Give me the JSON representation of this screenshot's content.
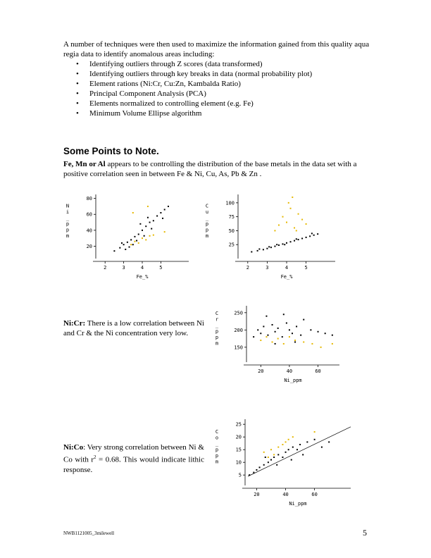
{
  "intro": {
    "lead": "A number of techniques were then used to maximize the information gained from this quality aqua regia data to identify anomalous areas including:",
    "bullets": [
      "Identifying outliers through Z scores (data transformed)",
      "Identifying outliers through key breaks in data (normal probability plot)",
      "Element rations (Ni:Cr, Cu:Zn, Kambalda Ratio)",
      "Principal Component Analysis (PCA)",
      "Elements normalized to controlling element (e.g. Fe)",
      "Minimum Volume Ellipse algorithm"
    ]
  },
  "section_heading": "Some Points to Note.",
  "para1": {
    "bold": "Fe, Mn or Al",
    "rest": " appears to be controlling the distribution of the base metals in the data set with a positive correlation seen in between Fe & Ni, Cu, As, Pb & Zn ."
  },
  "nicr_note": {
    "bold": "Ni:Cr:",
    "rest": " There is a low correlation between Ni and Cr & the Ni concentration very low."
  },
  "nico_note": {
    "bold": "Ni:Co",
    "rest_a": ": Very strong correlation between Ni & Co with r",
    "sup": "2",
    "rest_b": " = 0.68. This would indicate lithic response."
  },
  "footer": "NWB1121005_3milewell",
  "page_number": "5",
  "colors": {
    "black_points": "#000000",
    "yellow_points": "#e6b800"
  },
  "chart_data": [
    {
      "type": "scatter",
      "xlabel": "Fe_%",
      "ylabel": "Ni_ppm",
      "xlim": [
        1.5,
        6.5
      ],
      "ylim": [
        8,
        85
      ],
      "xticks": [
        "2",
        "3",
        "4",
        "5"
      ],
      "yticks": [
        "20",
        "40",
        "60",
        "80"
      ],
      "series": [
        {
          "color": "#000000",
          "points": [
            [
              2.5,
              14
            ],
            [
              2.8,
              18
            ],
            [
              3.0,
              22
            ],
            [
              3.1,
              16
            ],
            [
              3.2,
              25
            ],
            [
              3.4,
              28
            ],
            [
              3.5,
              22
            ],
            [
              3.6,
              32
            ],
            [
              3.8,
              35
            ],
            [
              4.0,
              40
            ],
            [
              4.2,
              45
            ],
            [
              4.4,
              50
            ],
            [
              4.6,
              52
            ],
            [
              4.8,
              58
            ],
            [
              5.0,
              62
            ],
            [
              5.2,
              66
            ],
            [
              5.4,
              70
            ],
            [
              3.3,
              19
            ],
            [
              3.7,
              27
            ],
            [
              4.1,
              33
            ],
            [
              4.5,
              42
            ],
            [
              2.9,
              24
            ],
            [
              3.9,
              48
            ],
            [
              4.3,
              56
            ],
            [
              5.1,
              55
            ]
          ]
        },
        {
          "color": "#e6b800",
          "points": [
            [
              3.4,
              22
            ],
            [
              3.6,
              26
            ],
            [
              3.8,
              24
            ],
            [
              4.0,
              30
            ],
            [
              4.2,
              28
            ],
            [
              4.4,
              33
            ],
            [
              4.6,
              34
            ],
            [
              5.2,
              38
            ],
            [
              3.5,
              62
            ],
            [
              4.3,
              70
            ]
          ]
        }
      ]
    },
    {
      "type": "scatter",
      "xlabel": "Fe_%",
      "ylabel": "Cu_ppm",
      "xlim": [
        1.5,
        6.5
      ],
      "ylim": [
        5,
        115
      ],
      "xticks": [
        "2",
        "3",
        "4",
        "5"
      ],
      "yticks": [
        "25",
        "50",
        "75",
        "100"
      ],
      "series": [
        {
          "color": "#000000",
          "points": [
            [
              2.2,
              12
            ],
            [
              2.5,
              14
            ],
            [
              2.8,
              16
            ],
            [
              3.0,
              18
            ],
            [
              3.2,
              20
            ],
            [
              3.4,
              22
            ],
            [
              3.6,
              24
            ],
            [
              3.8,
              26
            ],
            [
              4.0,
              28
            ],
            [
              4.2,
              30
            ],
            [
              4.4,
              32
            ],
            [
              4.6,
              34
            ],
            [
              4.8,
              36
            ],
            [
              5.0,
              38
            ],
            [
              5.2,
              40
            ],
            [
              5.4,
              42
            ],
            [
              5.6,
              44
            ],
            [
              3.1,
              21
            ],
            [
              3.9,
              25
            ],
            [
              4.5,
              35
            ],
            [
              5.3,
              45
            ],
            [
              2.6,
              17
            ],
            [
              3.5,
              25
            ]
          ]
        },
        {
          "color": "#e6b800",
          "points": [
            [
              3.6,
              60
            ],
            [
              3.8,
              75
            ],
            [
              4.0,
              65
            ],
            [
              4.2,
              90
            ],
            [
              4.4,
              55
            ],
            [
              4.6,
              80
            ],
            [
              4.8,
              70
            ],
            [
              3.4,
              50
            ],
            [
              4.1,
              100
            ],
            [
              4.5,
              50
            ],
            [
              5.0,
              62
            ],
            [
              4.3,
              110
            ]
          ]
        }
      ]
    },
    {
      "type": "scatter",
      "xlabel": "Ni_ppm",
      "ylabel": "Cr_ppm",
      "xlim": [
        10,
        75
      ],
      "ylim": [
        115,
        270
      ],
      "xticks": [
        "20",
        "40",
        "60"
      ],
      "yticks": [
        "150",
        "200",
        "250"
      ],
      "series": [
        {
          "color": "#000000",
          "points": [
            [
              15,
              180
            ],
            [
              18,
              200
            ],
            [
              20,
              190
            ],
            [
              22,
              210
            ],
            [
              25,
              185
            ],
            [
              28,
              215
            ],
            [
              30,
              195
            ],
            [
              32,
              205
            ],
            [
              35,
              180
            ],
            [
              38,
              220
            ],
            [
              40,
              200
            ],
            [
              42,
              190
            ],
            [
              45,
              210
            ],
            [
              48,
              185
            ],
            [
              50,
              230
            ],
            [
              55,
              200
            ],
            [
              60,
              195
            ],
            [
              65,
              190
            ],
            [
              70,
              185
            ],
            [
              24,
              240
            ],
            [
              36,
              245
            ],
            [
              30,
              160
            ],
            [
              44,
              165
            ]
          ]
        },
        {
          "color": "#e6b800",
          "points": [
            [
              20,
              170
            ],
            [
              24,
              180
            ],
            [
              28,
              165
            ],
            [
              32,
              175
            ],
            [
              36,
              160
            ],
            [
              40,
              180
            ],
            [
              44,
              170
            ],
            [
              50,
              165
            ],
            [
              56,
              160
            ],
            [
              62,
              150
            ],
            [
              70,
              160
            ]
          ]
        }
      ]
    },
    {
      "type": "scatter",
      "xlabel": "Ni_ppm",
      "ylabel": "Co_ppm",
      "xlim": [
        12,
        85
      ],
      "ylim": [
        2,
        27
      ],
      "xticks": [
        "20",
        "40",
        "60"
      ],
      "yticks": [
        "5",
        "10",
        "15",
        "20",
        "25"
      ],
      "series": [
        {
          "color": "#000000",
          "points": [
            [
              15,
              5
            ],
            [
              18,
              6
            ],
            [
              20,
              7
            ],
            [
              22,
              8
            ],
            [
              25,
              9
            ],
            [
              28,
              10
            ],
            [
              30,
              11
            ],
            [
              32,
              12
            ],
            [
              35,
              13
            ],
            [
              38,
              12
            ],
            [
              40,
              14
            ],
            [
              42,
              15
            ],
            [
              45,
              16
            ],
            [
              48,
              15
            ],
            [
              50,
              17
            ],
            [
              55,
              18
            ],
            [
              60,
              19
            ],
            [
              65,
              16
            ],
            [
              70,
              18
            ],
            [
              26,
              12
            ],
            [
              34,
              9
            ],
            [
              44,
              11
            ],
            [
              52,
              13
            ]
          ]
        },
        {
          "color": "#e6b800",
          "points": [
            [
              25,
              14
            ],
            [
              30,
              15
            ],
            [
              35,
              16
            ],
            [
              40,
              18
            ],
            [
              32,
              13
            ],
            [
              45,
              20
            ],
            [
              38,
              17
            ],
            [
              60,
              22
            ],
            [
              28,
              12
            ],
            [
              42,
              19
            ]
          ]
        }
      ],
      "trendline": [
        [
          14,
          4.5
        ],
        [
          85,
          24
        ]
      ]
    }
  ]
}
